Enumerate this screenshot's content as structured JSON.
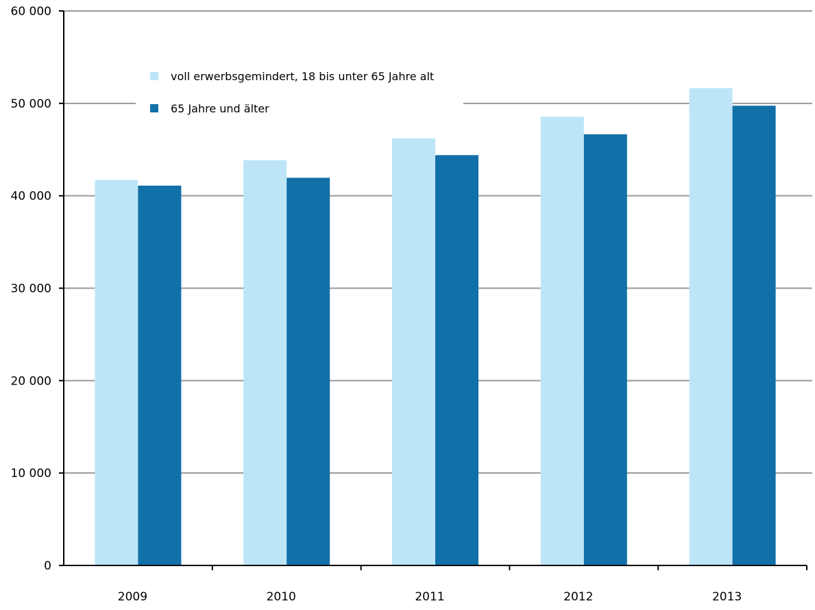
{
  "chart_data": {
    "type": "bar",
    "categories": [
      "2009",
      "2010",
      "2011",
      "2012",
      "2013"
    ],
    "series": [
      {
        "name": "voll erwerbsgemindert, 18 bis unter 65 Jahre alt",
        "color": "#bde5f8",
        "values": [
          41700,
          43850,
          46200,
          48550,
          51650
        ]
      },
      {
        "name": "65 Jahre und älter",
        "color": "#1270a8",
        "values": [
          41100,
          41950,
          44400,
          46650,
          49750
        ]
      }
    ],
    "ylim": [
      0,
      60000
    ],
    "yticks": [
      0,
      10000,
      20000,
      30000,
      40000,
      50000,
      60000
    ],
    "ytick_labels": [
      "0",
      "10 000",
      "20 000",
      "30 000",
      "40 000",
      "50 000",
      "60 000"
    ],
    "grid": true,
    "gridline_color": "#999999",
    "legend_position": "top-left",
    "title": "",
    "xlabel": "",
    "ylabel": ""
  }
}
